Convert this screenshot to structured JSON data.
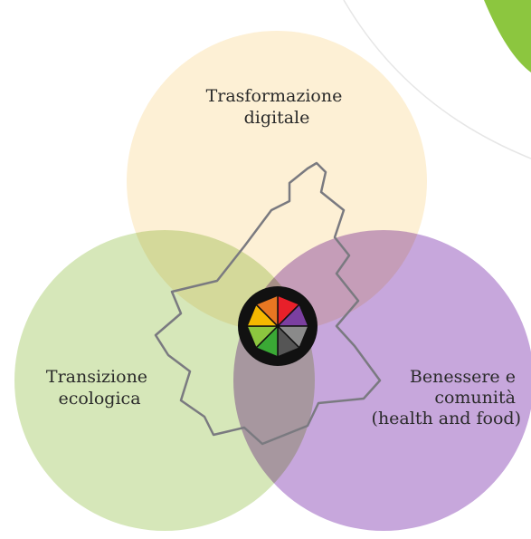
{
  "nodes": [
    {
      "label_lines": [
        "Trasformazione",
        "digitale"
      ]
    },
    {
      "label_lines": [
        "Transizione",
        "ecologica"
      ]
    },
    {
      "label_lines": [
        "Benessere e",
        "comunità",
        "(health and food)"
      ]
    }
  ]
}
